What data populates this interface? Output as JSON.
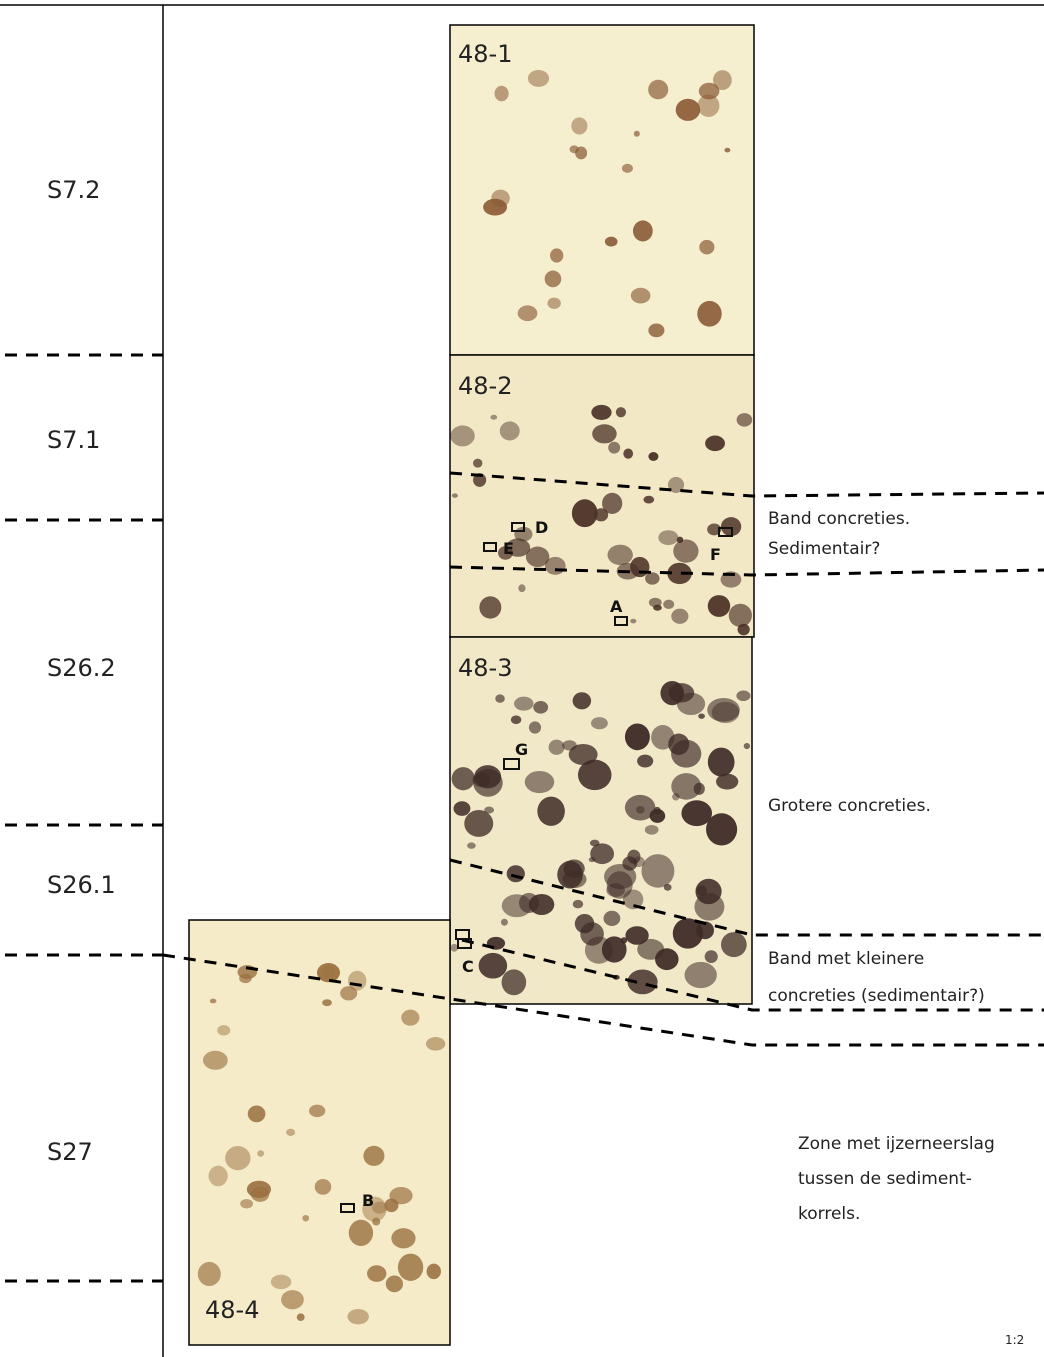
{
  "layers": [
    "S7.2",
    "S7.1",
    "S26.2",
    "S26.1",
    "S27"
  ],
  "samples": [
    "48-1",
    "48-2",
    "48-3",
    "48-4"
  ],
  "markers": [
    "A",
    "B",
    "C",
    "D",
    "E",
    "F",
    "G"
  ],
  "annotations": {
    "band_top": [
      "Band concreties.",
      "Sedimentair?"
    ],
    "large": "Grotere concreties.",
    "band_small": [
      "Band met kleinere",
      "concreties (sedimentair?)"
    ],
    "zone": [
      "Zone met ijzerneerslag",
      "tussen de sediment-",
      "korrels."
    ]
  },
  "scale": "1:2"
}
